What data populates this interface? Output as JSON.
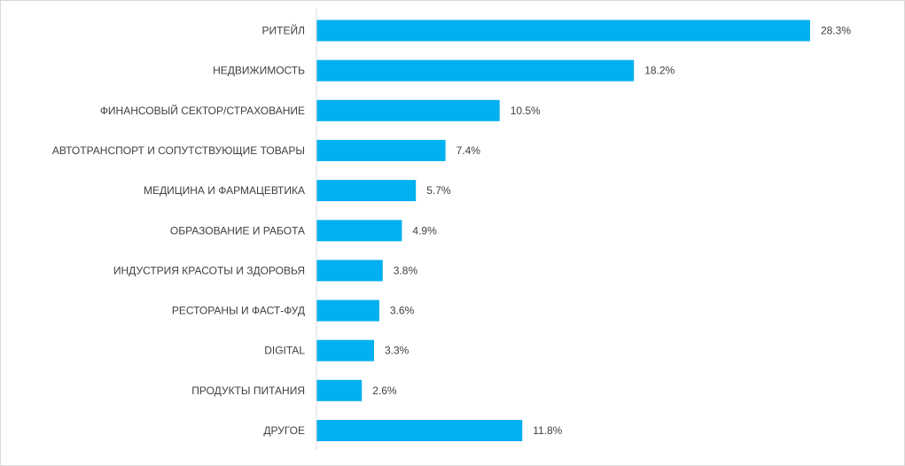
{
  "chart_data": {
    "type": "bar",
    "orientation": "horizontal",
    "title": "",
    "xlabel": "",
    "ylabel": "",
    "categories": [
      "РИТЕЙЛ",
      "НЕДВИЖИМОСТЬ",
      "ФИНАНСОВЫЙ СЕКТОР/СТРАХОВАНИЕ",
      "АВТОТРАНСПОРТ И СОПУТСТВУЮЩИЕ ТОВАРЫ",
      "МЕДИЦИНА И ФАРМАЦЕВТИКА",
      "ОБРАЗОВАНИЕ И РАБОТА",
      "ИНДУСТРИЯ КРАСОТЫ И ЗДОРОВЬЯ",
      "РЕСТОРАНЫ И ФАСТ-ФУД",
      "DIGITAL",
      "ПРОДУКТЫ ПИТАНИЯ",
      "ДРУГОЕ"
    ],
    "values": [
      28.3,
      18.2,
      10.5,
      7.4,
      5.7,
      4.9,
      3.8,
      3.6,
      3.3,
      2.6,
      11.8
    ],
    "value_labels": [
      "28.3%",
      "18.2%",
      "10.5%",
      "7.4%",
      "5.7%",
      "4.9%",
      "3.8%",
      "3.6%",
      "3.3%",
      "2.6%",
      "11.8%"
    ],
    "unit": "%",
    "xlim": [
      0,
      30
    ],
    "grid": false,
    "legend": "none",
    "bar_color": "#00b0f0",
    "axis_color": "#d9d9d9",
    "text_color": "#404040"
  }
}
